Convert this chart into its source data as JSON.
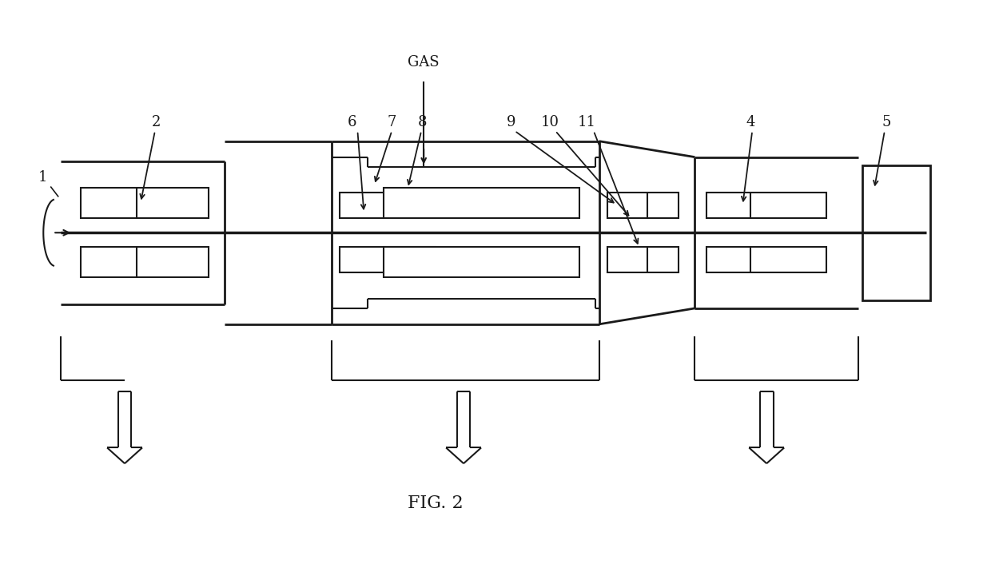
{
  "background_color": "#ffffff",
  "line_color": "#1a1a1a",
  "fig_width": 12.4,
  "fig_height": 7.21,
  "lw_main": 2.0,
  "lw_thin": 1.5
}
